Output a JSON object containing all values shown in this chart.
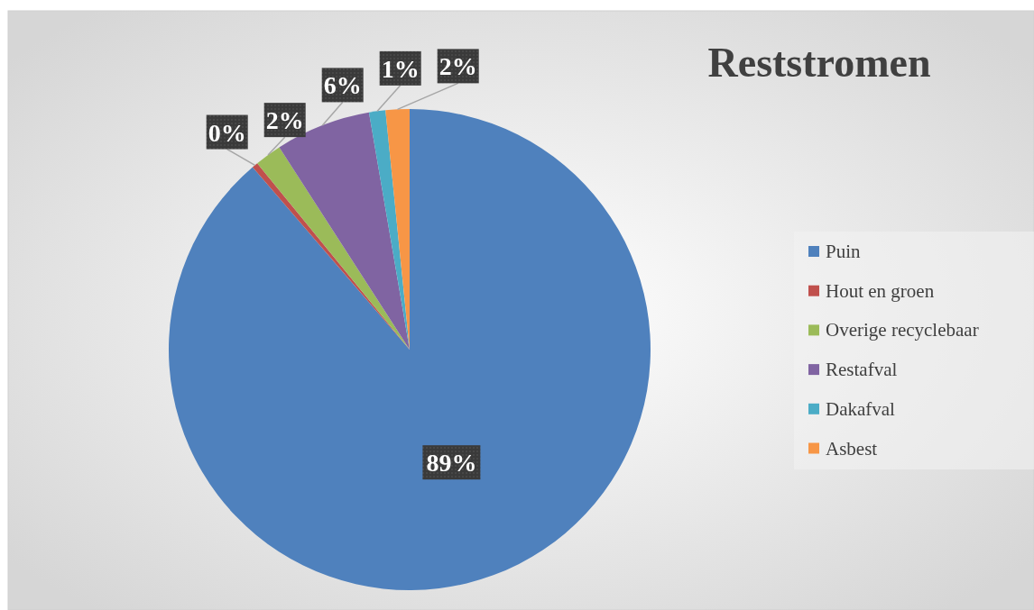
{
  "chart_data": {
    "type": "pie",
    "title": "Reststromen",
    "categories": [
      "Puin",
      "Hout en groen",
      "Overige recyclebaar",
      "Restafval",
      "Dakafval",
      "Asbest"
    ],
    "values": [
      88.7,
      0.4,
      1.8,
      6.4,
      1.1,
      1.6
    ],
    "value_labels": [
      "89%",
      "0%",
      "2%",
      "6%",
      "1%",
      "2%"
    ],
    "colors": [
      "#4f81bd",
      "#c0504d",
      "#9bbb59",
      "#8064a2",
      "#4bacc6",
      "#f79646"
    ],
    "legend": "right"
  }
}
